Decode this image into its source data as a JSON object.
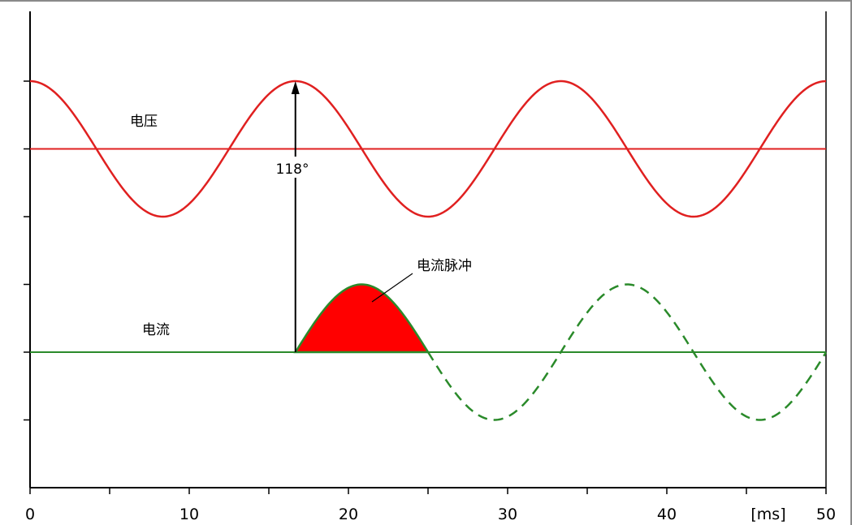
{
  "chart_data": {
    "type": "line",
    "title": "",
    "xlabel": "[ms]",
    "ylabel": "",
    "xlim": [
      0,
      50
    ],
    "x_ticks": [
      "0",
      "10",
      "20",
      "30",
      "40",
      "50"
    ],
    "period_ms": 16.67,
    "series": [
      {
        "name": "电压",
        "color": "#e02020",
        "amplitude": 1,
        "baseline": 1,
        "shape": "cosine",
        "range_ms": [
          0,
          50
        ]
      },
      {
        "name": "电流",
        "color": "#2a8a2a",
        "amplitude": 1,
        "baseline": -2,
        "shape": "sine",
        "start_ms": 16.67,
        "solid_range_ms": [
          16.67,
          25
        ],
        "dashed_range_ms": [
          25,
          50
        ]
      }
    ],
    "annotations": {
      "phase_angle": "118°",
      "voltage_label": "电压",
      "current_label": "电流",
      "pulse_label": "电流脉冲"
    },
    "colors": {
      "voltage": "#e02020",
      "current": "#2a8a2a",
      "pulse_fill": "#ff0000",
      "axis": "#000000"
    }
  }
}
